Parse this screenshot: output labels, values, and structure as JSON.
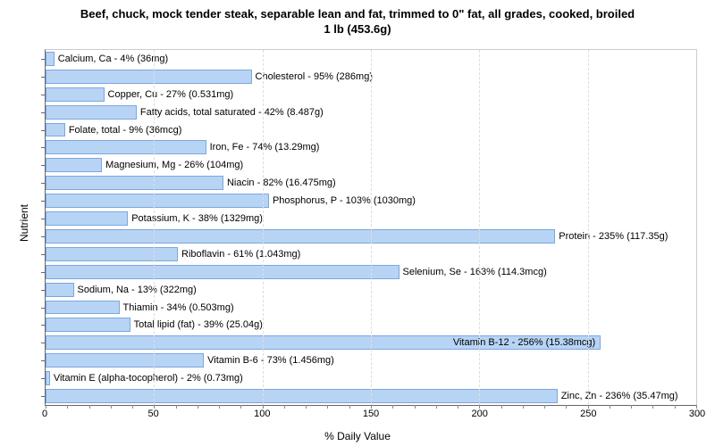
{
  "title_line1": "Beef, chuck, mock tender steak, separable lean and fat, trimmed to 0\" fat, all grades, cooked, broiled",
  "title_line2": "1 lb (453.6g)",
  "y_axis_label": "Nutrient",
  "x_axis_label": "% Daily Value",
  "chart": {
    "type": "bar-horizontal",
    "xlim": [
      0,
      300
    ],
    "xtick_step": 50,
    "xminor_step": 10,
    "bar_fill": "#b8d4f5",
    "bar_border": "#7aa7e0",
    "background": "#ffffff",
    "grid_color": "#dddddd",
    "label_fontsize": 11,
    "label_inside_threshold": 240
  },
  "nutrients": [
    {
      "label": "Calcium, Ca - 4% (36mg)",
      "value": 4
    },
    {
      "label": "Cholesterol - 95% (286mg)",
      "value": 95
    },
    {
      "label": "Copper, Cu - 27% (0.531mg)",
      "value": 27
    },
    {
      "label": "Fatty acids, total saturated - 42% (8.487g)",
      "value": 42
    },
    {
      "label": "Folate, total - 9% (36mcg)",
      "value": 9
    },
    {
      "label": "Iron, Fe - 74% (13.29mg)",
      "value": 74
    },
    {
      "label": "Magnesium, Mg - 26% (104mg)",
      "value": 26
    },
    {
      "label": "Niacin - 82% (16.475mg)",
      "value": 82
    },
    {
      "label": "Phosphorus, P - 103% (1030mg)",
      "value": 103
    },
    {
      "label": "Potassium, K - 38% (1329mg)",
      "value": 38
    },
    {
      "label": "Protein - 235% (117.35g)",
      "value": 235
    },
    {
      "label": "Riboflavin - 61% (1.043mg)",
      "value": 61
    },
    {
      "label": "Selenium, Se - 163% (114.3mcg)",
      "value": 163
    },
    {
      "label": "Sodium, Na - 13% (322mg)",
      "value": 13
    },
    {
      "label": "Thiamin - 34% (0.503mg)",
      "value": 34
    },
    {
      "label": "Total lipid (fat) - 39% (25.04g)",
      "value": 39
    },
    {
      "label": "Vitamin B-12 - 256% (15.38mcg)",
      "value": 256
    },
    {
      "label": "Vitamin B-6 - 73% (1.456mg)",
      "value": 73
    },
    {
      "label": "Vitamin E (alpha-tocopherol) - 2% (0.73mg)",
      "value": 2
    },
    {
      "label": "Zinc, Zn - 236% (35.47mg)",
      "value": 236
    }
  ]
}
